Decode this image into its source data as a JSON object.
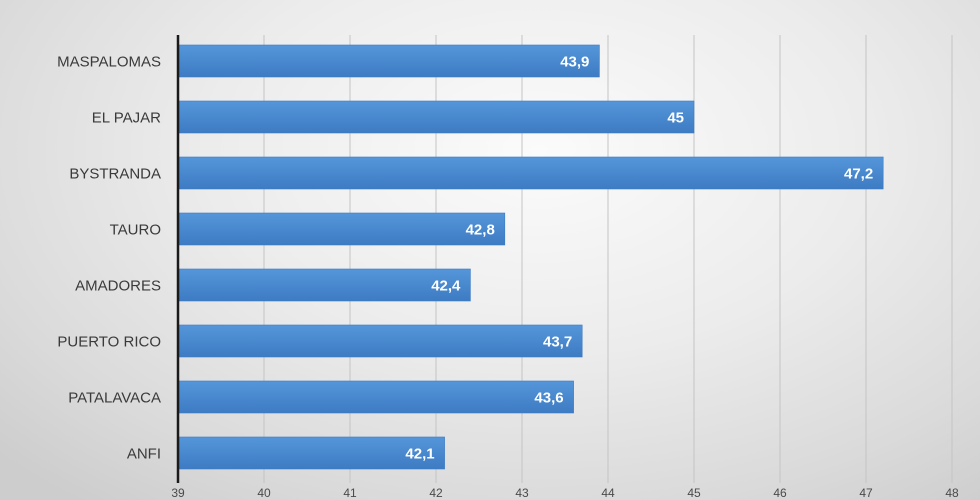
{
  "chart_data": {
    "type": "bar",
    "orientation": "horizontal",
    "categories": [
      "MASPALOMAS",
      "EL PAJAR",
      "BYSTRANDA",
      "TAURO",
      "AMADORES",
      "PUERTO RICO",
      "PATALAVACA",
      "ANFI"
    ],
    "values": [
      43.9,
      45,
      47.2,
      42.8,
      42.4,
      43.7,
      43.6,
      42.1
    ],
    "data_labels": [
      "43,9",
      "45",
      "47,2",
      "42,8",
      "42,4",
      "43,7",
      "43,6",
      "42,1"
    ],
    "xlim": [
      39,
      48
    ],
    "x_ticks": [
      39,
      40,
      41,
      42,
      43,
      44,
      45,
      46,
      47,
      48
    ],
    "x_tick_labels": [
      "39",
      "40",
      "41",
      "42",
      "43",
      "44",
      "45",
      "46",
      "47",
      "48"
    ],
    "grid": "vertical",
    "legend": "none",
    "colors": {
      "bar": "#4a8ad1",
      "bar_dark": "#3d7bc2",
      "gridline": "#c4c4c4",
      "axis": "#1a1a1a",
      "data_label": "#ffffff",
      "category_label": "#3a3a3a"
    }
  }
}
